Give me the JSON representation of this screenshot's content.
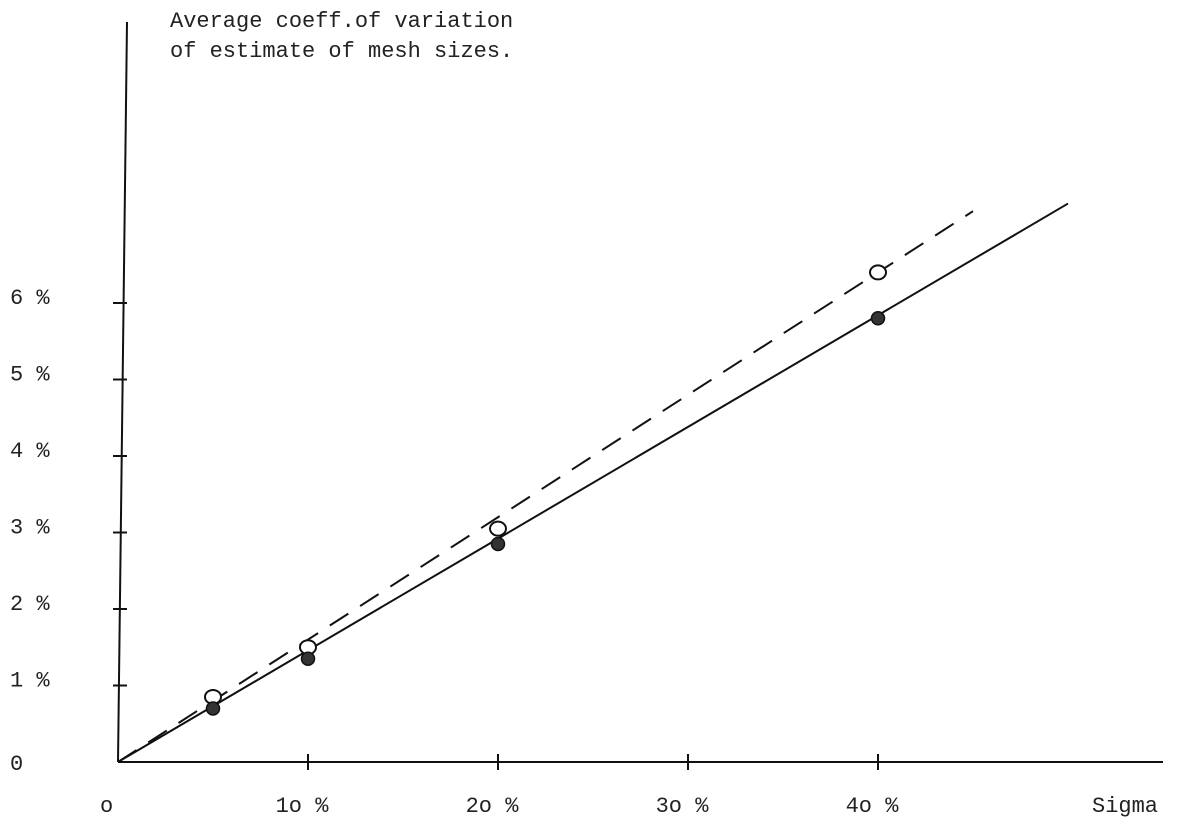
{
  "chart_data": {
    "type": "scatter",
    "title_lines": [
      "Average coeff.of variation",
      "of estimate of mesh sizes."
    ],
    "xlabel": "Sigma",
    "ylabel": "",
    "x_ticks": [
      {
        "value": 0,
        "label": "o"
      },
      {
        "value": 10,
        "label": "1o %"
      },
      {
        "value": 20,
        "label": "2o %"
      },
      {
        "value": 30,
        "label": "3o %"
      },
      {
        "value": 40,
        "label": "4o %"
      }
    ],
    "y_ticks": [
      {
        "value": 0,
        "label": "0"
      },
      {
        "value": 1,
        "label": "1 %"
      },
      {
        "value": 2,
        "label": "2 %"
      },
      {
        "value": 3,
        "label": "3 %"
      },
      {
        "value": 4,
        "label": "4 %"
      },
      {
        "value": 5,
        "label": "5 %"
      },
      {
        "value": 6,
        "label": "6 %"
      }
    ],
    "xlim": [
      0,
      50
    ],
    "ylim": [
      0,
      9.5
    ],
    "series": [
      {
        "marker": "open-circle",
        "line_style": "dashed",
        "points": [
          {
            "x": 5,
            "y": 0.85
          },
          {
            "x": 10,
            "y": 1.5
          },
          {
            "x": 20,
            "y": 3.05
          },
          {
            "x": 40,
            "y": 6.4
          }
        ],
        "fit_line": [
          [
            0,
            0
          ],
          [
            45,
            7.2
          ]
        ]
      },
      {
        "marker": "filled-circle",
        "line_style": "solid",
        "points": [
          {
            "x": 5,
            "y": 0.7
          },
          {
            "x": 10,
            "y": 1.35
          },
          {
            "x": 20,
            "y": 2.85
          },
          {
            "x": 40,
            "y": 5.8
          }
        ],
        "fit_line": [
          [
            0,
            0
          ],
          [
            50,
            7.3
          ]
        ]
      }
    ],
    "grid": false,
    "legend": "none"
  }
}
